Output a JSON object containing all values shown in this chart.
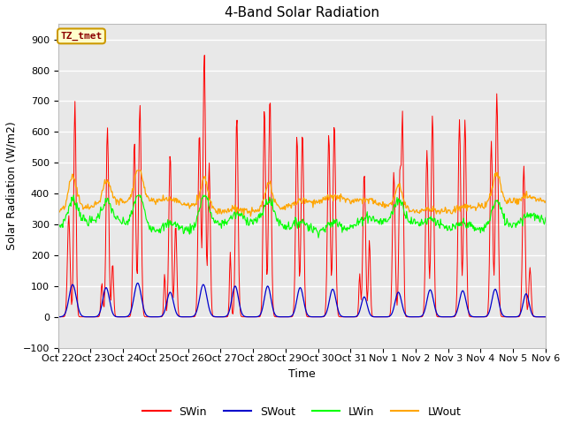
{
  "title": "4-Band Solar Radiation",
  "ylabel": "Solar Radiation (W/m2)",
  "xlabel": "Time",
  "annotation": "TZ_tmet",
  "ylim": [
    -100,
    950
  ],
  "yticks": [
    -100,
    0,
    100,
    200,
    300,
    400,
    500,
    600,
    700,
    800,
    900
  ],
  "xtick_labels": [
    "Oct 22",
    "Oct 23",
    "Oct 24",
    "Oct 25",
    "Oct 26",
    "Oct 27",
    "Oct 28",
    "Oct 29",
    "Oct 30",
    "Oct 31",
    "Nov 1",
    "Nov 2",
    "Nov 3",
    "Nov 4",
    "Nov 5",
    "Nov 6"
  ],
  "colors": {
    "SWin": "#ff0000",
    "SWout": "#0000cc",
    "LWin": "#00ff00",
    "LWout": "#ffa500"
  },
  "bg_color": "#e8e8e8",
  "title_fontsize": 11,
  "label_fontsize": 9,
  "tick_fontsize": 8
}
